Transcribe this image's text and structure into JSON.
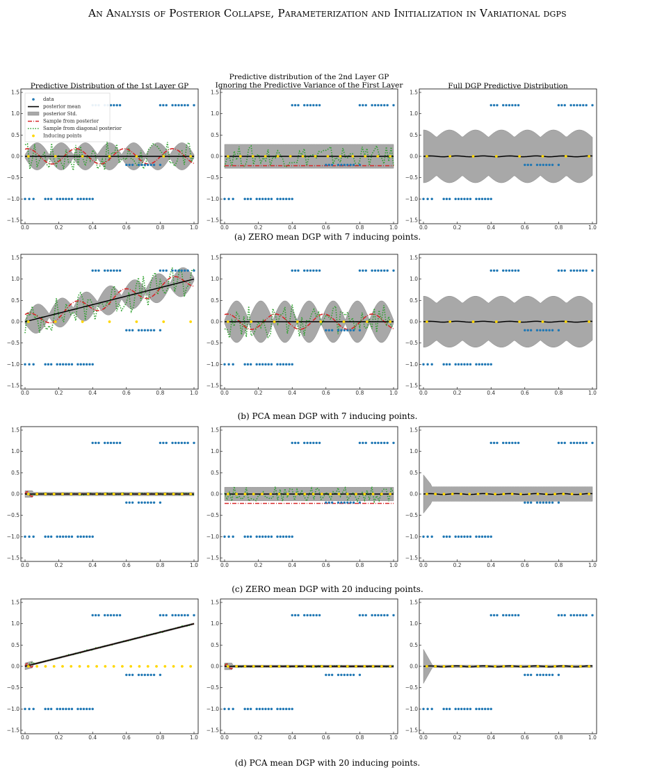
{
  "header": {
    "title": "An Analysis of Posterior Collapse, Parameterization and Initialization in Variational dgps"
  },
  "column_titles": [
    [
      "Predictive Distribution of the 1st Layer GP"
    ],
    [
      "Predictive distribution of the 2nd Layer GP",
      "Ignoring the Predictive Variance of the First Layer"
    ],
    [
      "Full DGP Predictive Distribution"
    ]
  ],
  "captions": [
    "(a) ZERO mean DGP with 7 inducing points.",
    "(b) PCA mean DGP with 7 inducing points.",
    "(c) ZERO mean DGP with 20 inducing points.",
    "(d) PCA mean DGP with 20 inducing points."
  ],
  "legend": {
    "entries": [
      "data",
      "posterior mean",
      "posterior Std.",
      "Sample from posterior",
      "Sample from diagonal posterior",
      "Inducing points"
    ]
  },
  "axis": {
    "xlim": [
      0,
      1
    ],
    "ylim": [
      -1.5,
      1.5
    ],
    "xticks": [
      "0.0",
      "0.2",
      "0.4",
      "0.6",
      "0.8",
      "1.0"
    ],
    "yticks": [
      "−1.5",
      "−1.0",
      "−0.5",
      "0.0",
      "0.5",
      "1.0",
      "1.5"
    ],
    "ytick_values": [
      -1.5,
      -1.0,
      -0.5,
      0.0,
      0.5,
      1.0,
      1.5
    ]
  },
  "colors": {
    "data": "#1f77b4",
    "mean": "#000000",
    "band": "#a8a8a8",
    "sample": "#d62728",
    "diag": "#2ca02c",
    "inducing": "#ffd700"
  },
  "chart_data": {
    "type": "scatter",
    "data_segments": [
      {
        "x_from": 0.0,
        "x_to": 0.05,
        "y": -1.0
      },
      {
        "x_from": 0.12,
        "x_to": 0.4,
        "y": -1.0
      },
      {
        "x_from": 0.4,
        "x_to": 0.58,
        "y": 1.2
      },
      {
        "x_from": 0.6,
        "x_to": 0.8,
        "y": -0.2
      },
      {
        "x_from": 0.8,
        "x_to": 1.0,
        "y": 1.2
      }
    ],
    "rows": [
      {
        "label": "(a)",
        "panels": [
          {
            "mean": "zero",
            "band": "osc",
            "band_amp": 0.28,
            "sample": "osc",
            "diag_amp": 0.35,
            "inducing_count": 7,
            "inducing_y": "mean"
          },
          {
            "mean": "zero",
            "band": "const",
            "band_amp": 0.28,
            "sample": "offset",
            "diag_amp": 0.25,
            "inducing_count": 14,
            "inducing_y": "mean"
          },
          {
            "mean": "zero",
            "band": "osc_big",
            "band_amp": 0.62,
            "sample": "none",
            "diag_amp": 0,
            "inducing_count": 8,
            "inducing_y": "mean"
          }
        ]
      },
      {
        "label": "(b)",
        "panels": [
          {
            "mean": "linear",
            "band": "osc",
            "band_amp": 0.3,
            "sample": "osc",
            "diag_amp": 0.4,
            "inducing_count": 7,
            "inducing_y": "zero"
          },
          {
            "mean": "zero",
            "band": "osc",
            "band_amp": 0.45,
            "sample": "osc",
            "diag_amp": 0.4,
            "inducing_count": 8,
            "inducing_y": "mean"
          },
          {
            "mean": "zero",
            "band": "osc_big",
            "band_amp": 0.6,
            "sample": "none",
            "diag_amp": 0,
            "inducing_count": 8,
            "inducing_y": "mean"
          }
        ]
      },
      {
        "label": "(c)",
        "panels": [
          {
            "mean": "zero",
            "band": "tiny",
            "band_amp": 0.04,
            "sample": "flat",
            "diag_amp": 0.02,
            "inducing_count": 20,
            "inducing_y": "mean"
          },
          {
            "mean": "zero",
            "band": "const",
            "band_amp": 0.16,
            "sample": "offset",
            "diag_amp": 0.18,
            "inducing_count": 20,
            "inducing_y": "mean"
          },
          {
            "mean": "zero",
            "band": "const_spike",
            "band_amp": 0.17,
            "sample": "none",
            "diag_amp": 0,
            "inducing_count": 20,
            "inducing_y": "mean"
          }
        ]
      },
      {
        "label": "(d)",
        "panels": [
          {
            "mean": "linear",
            "band": "tiny",
            "band_amp": 0.02,
            "sample": "flat",
            "diag_amp": 0.02,
            "inducing_count": 20,
            "inducing_y": "zero"
          },
          {
            "mean": "zero",
            "band": "tiny",
            "band_amp": 0.03,
            "sample": "flat",
            "diag_amp": 0.02,
            "inducing_count": 20,
            "inducing_y": "mean"
          },
          {
            "mean": "zero",
            "band": "spike",
            "band_amp": 0.03,
            "sample": "none",
            "diag_amp": 0,
            "inducing_count": 20,
            "inducing_y": "mean"
          }
        ]
      }
    ]
  }
}
